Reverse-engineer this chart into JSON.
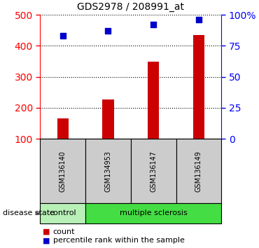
{
  "title": "GDS2978 / 208991_at",
  "samples": [
    "GSM136140",
    "GSM134953",
    "GSM136147",
    "GSM136149"
  ],
  "counts": [
    165,
    228,
    350,
    435
  ],
  "percentiles": [
    83,
    87,
    92,
    96
  ],
  "ylim_left": [
    100,
    500
  ],
  "ylim_right": [
    0,
    100
  ],
  "yticks_left": [
    100,
    200,
    300,
    400,
    500
  ],
  "yticks_right": [
    0,
    25,
    50,
    75,
    100
  ],
  "yticklabels_right": [
    "0",
    "25",
    "50",
    "75",
    "100%"
  ],
  "bar_color": "#cc0000",
  "dot_color": "#0000cc",
  "group_row_color_control": "#b8f0b8",
  "group_row_color_ms": "#44dd44",
  "sample_box_color": "#cccccc",
  "disease_state_label": "disease state",
  "legend_count_label": "count",
  "legend_pct_label": "percentile rank within the sample",
  "bar_width": 0.25,
  "dot_size": 40,
  "n_samples": 4,
  "n_control": 1,
  "n_ms": 3
}
